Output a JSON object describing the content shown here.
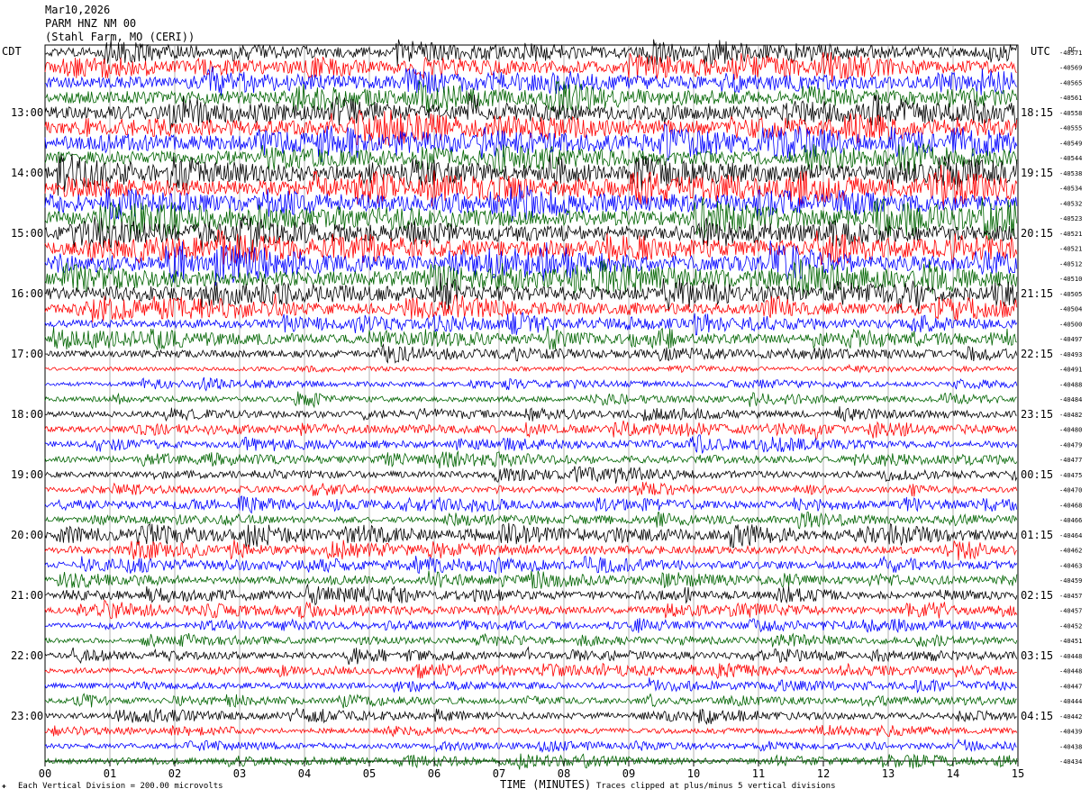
{
  "header": {
    "date": "Mar10,2026",
    "station": "PARM HNZ NM 00",
    "location": "(Stahl Farm, MO (CERI))"
  },
  "left_tz": "CDT",
  "right_tz": "UTC",
  "dc_label": "DC",
  "footer": {
    "scale": "Each Vertical Division =  200.00 microvolts",
    "clip": "Traces clipped at plus/minus 5 vertical divisions",
    "mark": "✚"
  },
  "chart_data": {
    "type": "line",
    "title": "",
    "xlabel": "TIME (MINUTES)",
    "xlim": [
      0,
      15
    ],
    "x_ticks": [
      "00",
      "01",
      "02",
      "03",
      "04",
      "05",
      "06",
      "07",
      "08",
      "09",
      "10",
      "11",
      "12",
      "13",
      "14",
      "15"
    ],
    "trace_colors": [
      "#000000",
      "#ff0000",
      "#0000ff",
      "#006400"
    ],
    "trace_count": 48,
    "left_time_labels": [
      "13:00",
      "14:00",
      "15:00",
      "16:00",
      "17:00",
      "18:00",
      "19:00",
      "20:00",
      "21:00",
      "22:00",
      "23:00"
    ],
    "right_time_labels": [
      "18:15",
      "19:15",
      "20:15",
      "21:15",
      "22:15",
      "23:15",
      "00:15",
      "01:15",
      "02:15",
      "03:15",
      "04:15"
    ],
    "dc_offsets": [
      "-40571",
      "-40569",
      "-40565",
      "-40561",
      "-40558",
      "-40555",
      "-40549",
      "-40544",
      "-40538",
      "-40534",
      "-40532",
      "-40523",
      "-40521",
      "-40521",
      "-40512",
      "-40510",
      "-40505",
      "-40504",
      "-40500",
      "-40497",
      "-40493",
      "-40491",
      "-40488",
      "-40484",
      "-40482",
      "-40480",
      "-40479",
      "-40477",
      "-40475",
      "-40470",
      "-40468",
      "-40466",
      "-40464",
      "-40462",
      "-40463",
      "-40459",
      "-40457",
      "-40457",
      "-40452",
      "-40451",
      "-40448",
      "-40448",
      "-40447",
      "-40444",
      "-40442",
      "-40439",
      "-40438",
      "-40434"
    ],
    "trace_amplitude_divs": [
      3,
      3.5,
      3.5,
      4,
      4,
      4.5,
      4.5,
      4,
      4.5,
      4.5,
      4.5,
      4.5,
      4.5,
      4.5,
      4.5,
      4.5,
      4,
      3,
      2.5,
      2.5,
      2.2,
      1.2,
      1.4,
      1.6,
      1.8,
      2,
      2,
      2,
      1.8,
      1.6,
      1.8,
      1.8,
      2.6,
      2.4,
      2.2,
      2,
      2,
      2,
      1.6,
      1.6,
      1.8,
      1.8,
      1.8,
      1.6,
      1.8,
      1.6,
      1.6,
      1.8
    ]
  }
}
